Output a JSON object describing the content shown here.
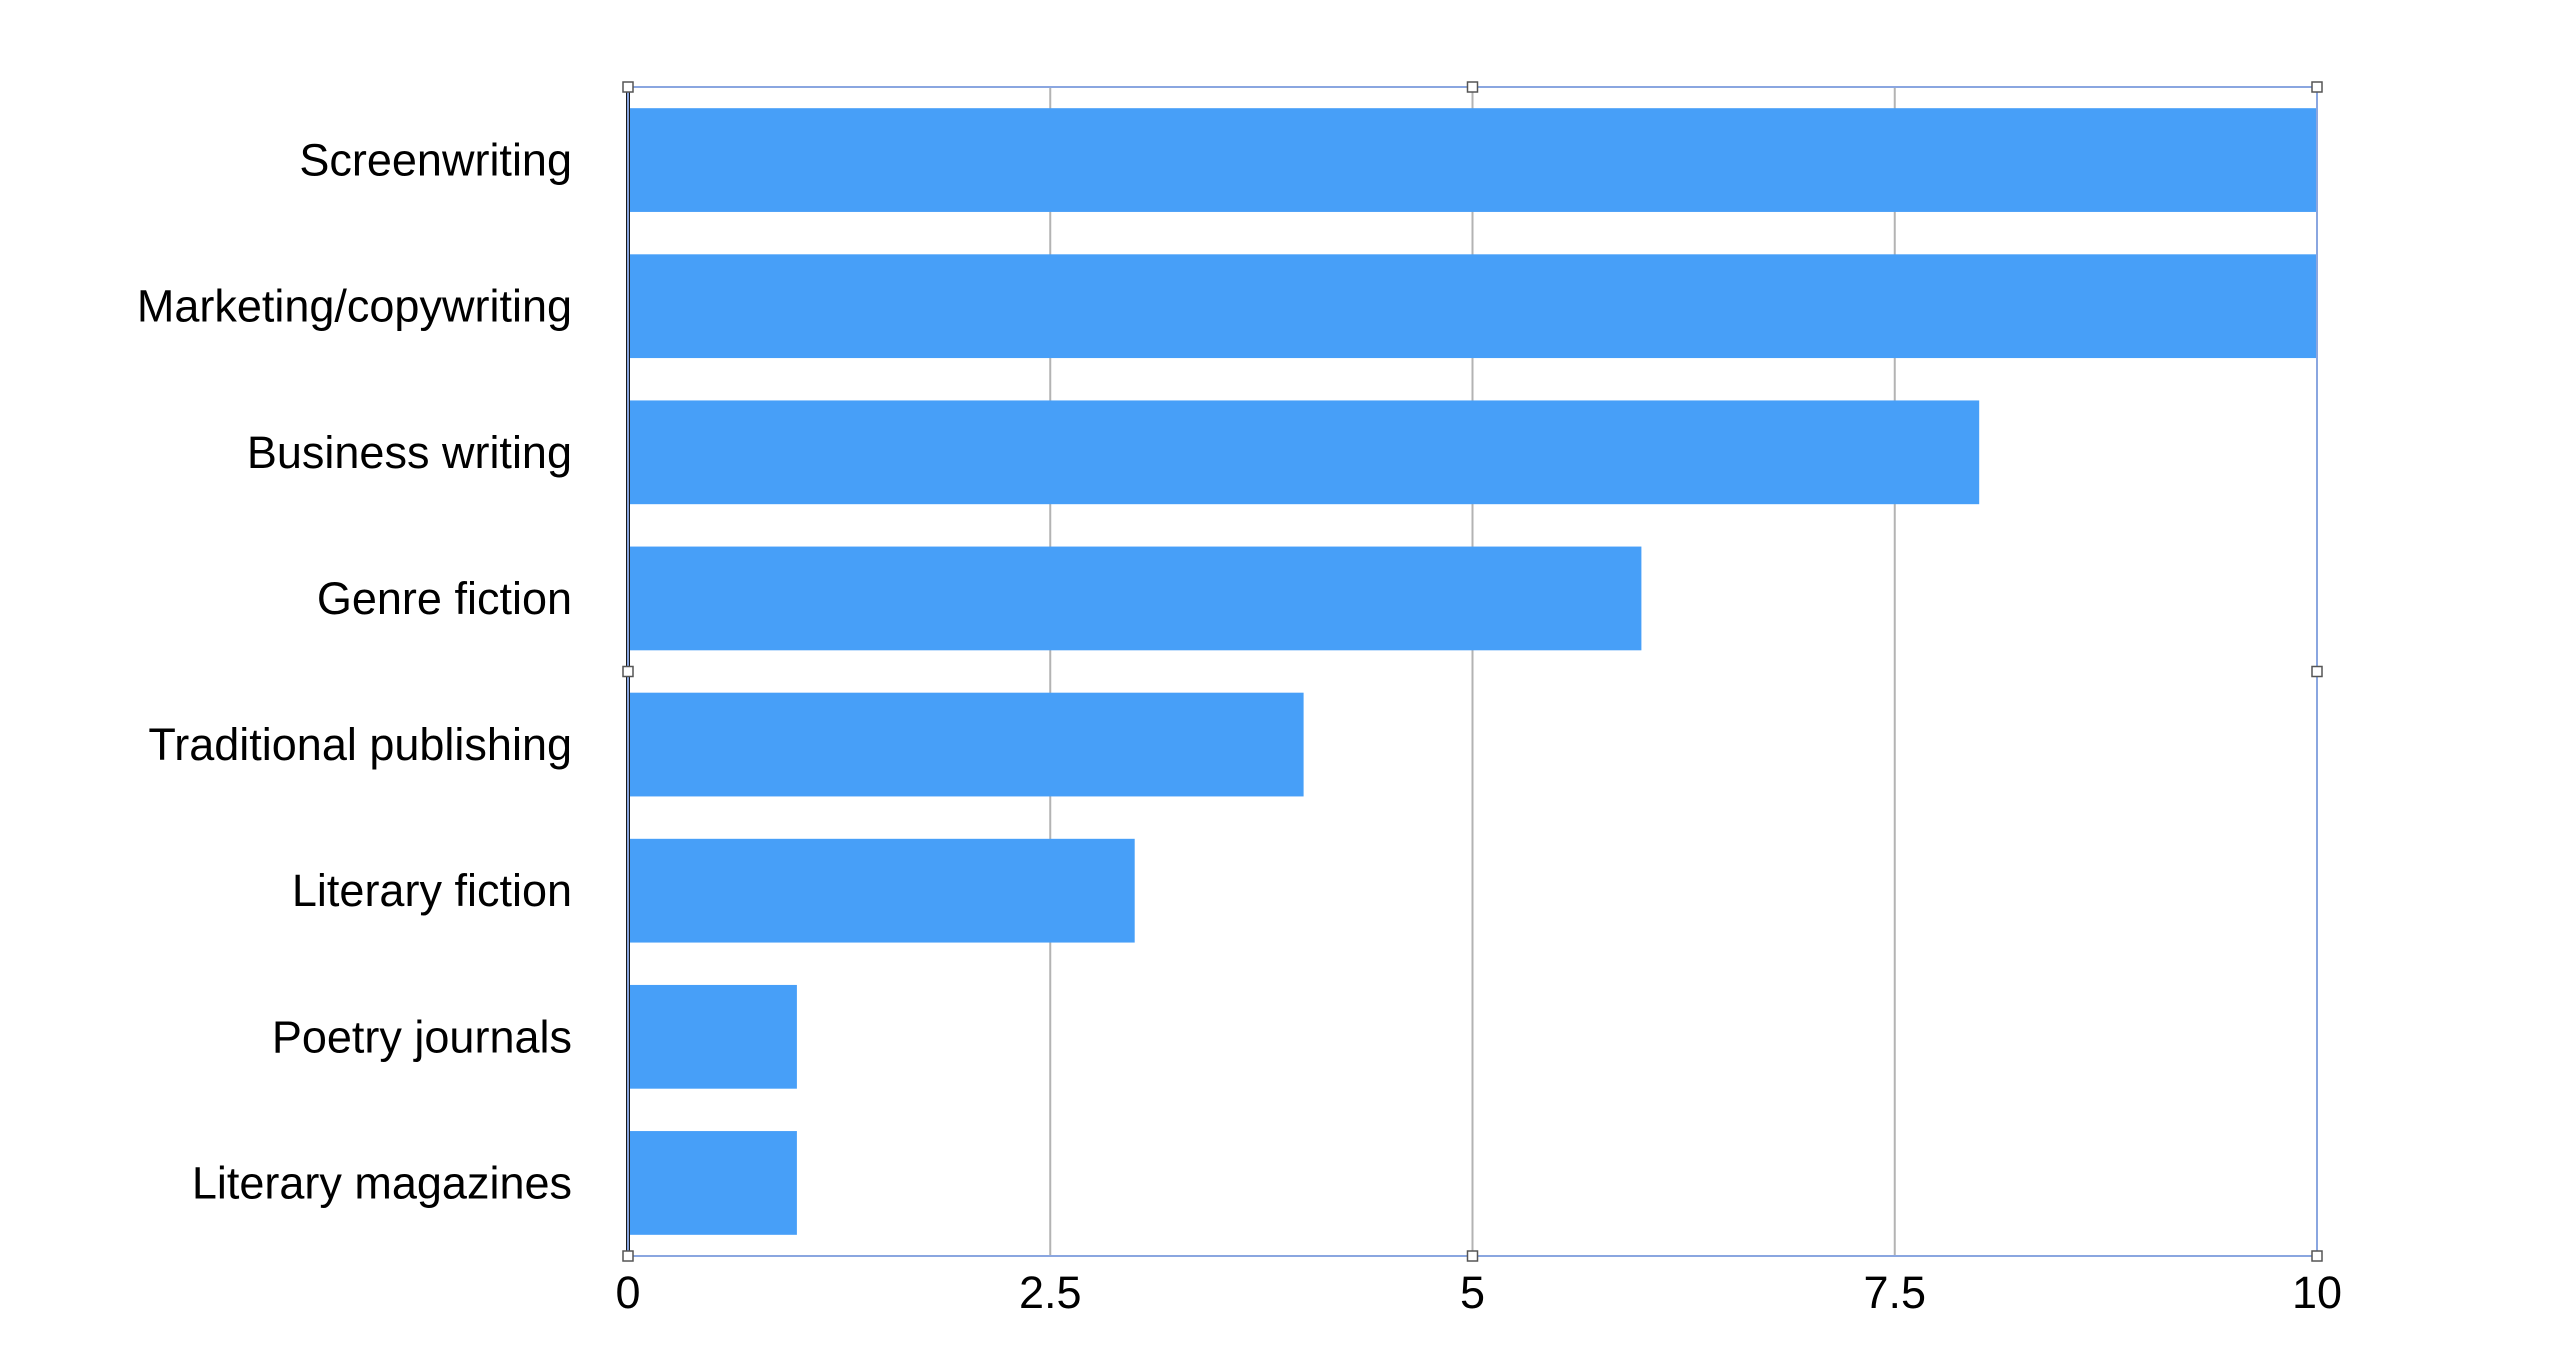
{
  "chart_data": {
    "type": "bar",
    "orientation": "horizontal",
    "categories": [
      "Screenwriting",
      "Marketing/copywriting",
      "Business writing",
      "Genre fiction",
      "Traditional publishing",
      "Literary fiction",
      "Poetry journals",
      "Literary magazines"
    ],
    "values": [
      10,
      10,
      8,
      6,
      4,
      3,
      1,
      1
    ],
    "xlim": [
      0,
      10
    ],
    "x_ticks": [
      "0",
      "2.5",
      "5",
      "7.5",
      "10"
    ],
    "x_tick_values": [
      0,
      2.5,
      5,
      7.5,
      10
    ],
    "grid": "vertical",
    "legend": "none",
    "title": "",
    "xlabel": "",
    "ylabel": "",
    "colors": {
      "bar": "#479ff8",
      "grid": "#b3b3b3",
      "axis": "#1c1c1c",
      "selection": "#8aa6e0"
    }
  }
}
